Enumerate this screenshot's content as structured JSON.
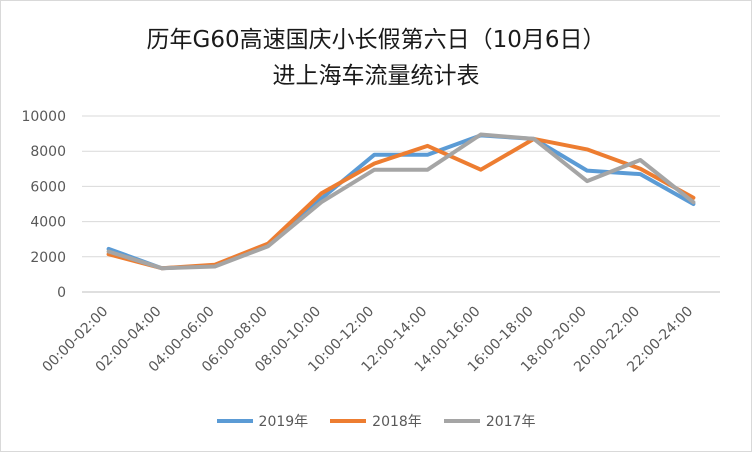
{
  "chart_data": {
    "type": "line",
    "title": "历年G60高速国庆小长假第六日（10月6日）",
    "subtitle": "进上海车流量统计表",
    "xlabel": "",
    "ylabel": "",
    "categories": [
      "00:00-02:00",
      "02:00-04:00",
      "04:00-06:00",
      "06:00-08:00",
      "08:00-10:00",
      "10:00-12:00",
      "12:00-14:00",
      "14:00-16:00",
      "16:00-18:00",
      "18:00-20:00",
      "20:00-22:00",
      "22:00-24:00"
    ],
    "yticks": [
      "0",
      "2000",
      "4000",
      "6000",
      "8000",
      "10000"
    ],
    "ylim": [
      0,
      10000
    ],
    "grid": true,
    "legend_position": "bottom",
    "series": [
      {
        "name": "2019年",
        "color": "#5b9bd5",
        "values": [
          2450,
          1350,
          1500,
          2700,
          5300,
          7800,
          7800,
          8900,
          8700,
          6900,
          6700,
          5000
        ]
      },
      {
        "name": "2018年",
        "color": "#ed7d31",
        "values": [
          2150,
          1350,
          1550,
          2750,
          5600,
          7300,
          8300,
          6950,
          8700,
          8100,
          7000,
          5350
        ]
      },
      {
        "name": "2017年",
        "color": "#a5a5a5",
        "values": [
          2300,
          1350,
          1450,
          2600,
          5100,
          6950,
          6950,
          8950,
          8700,
          6300,
          7500,
          5100
        ]
      }
    ]
  }
}
